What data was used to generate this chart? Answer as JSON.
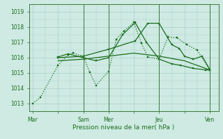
{
  "background_color": "#ceeae3",
  "grid_color": "#aacfc8",
  "line_color": "#1a6e1a",
  "xlabel": "Pression niveau de la mer( hPa )",
  "ylim": [
    1012.5,
    1019.5
  ],
  "yticks": [
    1013,
    1014,
    1015,
    1016,
    1017,
    1018,
    1019
  ],
  "xlim": [
    -0.15,
    7.35
  ],
  "xtick_labels": [
    "Mar",
    "",
    "Sam",
    "Mer",
    "",
    "Jeu",
    "",
    "Ven"
  ],
  "xtick_positions": [
    0,
    1,
    2,
    3,
    4,
    5,
    6,
    7
  ],
  "vlines": [
    2.0,
    3.0,
    5.0,
    7.0
  ],
  "series": [
    {
      "x": [
        0.0,
        0.3,
        1.0,
        1.4,
        1.6,
        2.0,
        2.25,
        2.5,
        3.0,
        3.3,
        3.6,
        4.0,
        4.3,
        4.55,
        5.0,
        5.35,
        5.7,
        6.1,
        6.5,
        7.0
      ],
      "y": [
        1013.0,
        1013.4,
        1015.5,
        1016.2,
        1016.3,
        1016.1,
        1015.05,
        1014.2,
        1015.1,
        1017.2,
        1017.75,
        1018.3,
        1016.95,
        1016.05,
        1015.9,
        1017.35,
        1017.3,
        1016.85,
        1016.5,
        1015.2
      ],
      "style": "dotted",
      "marker": "s",
      "markersize": 2.0,
      "lw": 0.9
    },
    {
      "x": [
        1.0,
        1.4,
        2.0,
        2.5,
        3.0,
        3.55,
        4.05,
        4.5,
        5.0,
        5.5,
        5.85,
        6.35,
        6.85,
        7.0
      ],
      "y": [
        1016.05,
        1016.25,
        1016.0,
        1015.8,
        1016.0,
        1017.5,
        1018.3,
        1017.0,
        1015.9,
        1015.6,
        1015.5,
        1015.3,
        1015.2,
        1015.2
      ],
      "style": "solid",
      "marker": "s",
      "markersize": 2.0,
      "lw": 0.9
    },
    {
      "x": [
        1.0,
        2.0,
        3.0,
        4.05,
        4.55,
        5.0,
        5.5,
        5.8,
        6.0,
        6.35,
        6.7,
        7.0
      ],
      "y": [
        1016.0,
        1016.1,
        1016.55,
        1017.1,
        1018.25,
        1018.25,
        1016.85,
        1016.6,
        1016.1,
        1015.9,
        1016.1,
        1015.25
      ],
      "style": "solid",
      "marker": "s",
      "markersize": 2.0,
      "lw": 0.9
    },
    {
      "x": [
        1.0,
        2.0,
        3.0,
        4.0,
        5.0,
        6.0,
        7.0
      ],
      "y": [
        1015.8,
        1015.9,
        1016.1,
        1016.3,
        1016.1,
        1015.8,
        1015.2
      ],
      "style": "solid",
      "marker": null,
      "markersize": 0,
      "lw": 0.9
    }
  ]
}
